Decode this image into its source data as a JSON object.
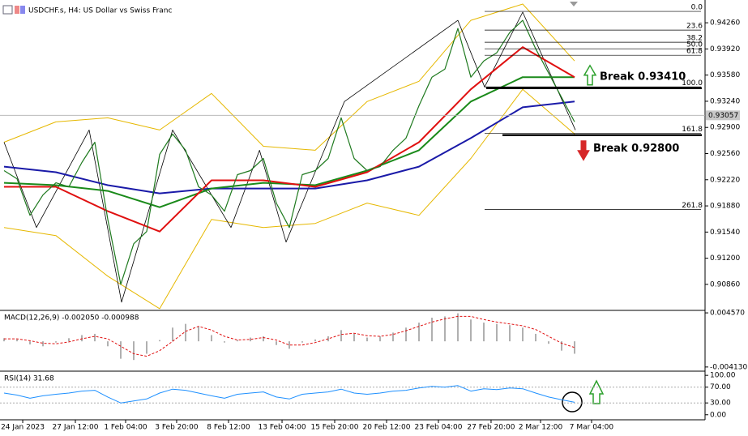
{
  "chart_data": [
    {
      "type": "line",
      "title": "USDCHF.s, H4:  US Dollar vs Swiss Franc",
      "xlim": [
        -0.3125,
        54.0625
      ],
      "ylim": [
        0.90522,
        0.94556
      ],
      "yticks": [
        {
          "value": 0.9426,
          "label": "0.94260"
        },
        {
          "value": 0.9392,
          "label": "0.93920"
        },
        {
          "value": 0.9358,
          "label": "0.93580"
        },
        {
          "value": 0.9324,
          "label": "0.93240"
        },
        {
          "value": 0.929,
          "label": "0.92900"
        },
        {
          "value": 0.9256,
          "label": "0.92560"
        },
        {
          "value": 0.9222,
          "label": "0.92220"
        },
        {
          "value": 0.9188,
          "label": "0.91880"
        },
        {
          "value": 0.9154,
          "label": "0.91540"
        },
        {
          "value": 0.912,
          "label": "0.91200"
        },
        {
          "value": 0.9086,
          "label": "0.90860"
        }
      ],
      "last_price": 0.93057,
      "series": [
        {
          "color": "#e6b800",
          "width": 1,
          "x": [
            0,
            4,
            8,
            12,
            16,
            20,
            24,
            28,
            32,
            36,
            40,
            44
          ],
          "values": [
            0.92708,
            0.92972,
            0.93025,
            0.92867,
            0.93342,
            0.92655,
            0.92603,
            0.93236,
            0.935,
            0.94292,
            0.94503,
            0.93764
          ]
        },
        {
          "color": "#e6b800",
          "width": 1,
          "x": [
            0,
            4,
            8,
            12,
            16,
            20,
            24,
            28,
            32,
            36,
            40,
            44
          ],
          "values": [
            0.916,
            0.91494,
            0.90966,
            0.90544,
            0.91705,
            0.916,
            0.91652,
            0.91916,
            0.91758,
            0.92497,
            0.93395,
            0.92814
          ]
        },
        {
          "color": "#000000",
          "width": 0.8,
          "x": [
            0,
            2.5,
            6.56,
            9.06,
            13,
            17.5,
            19.7,
            21.75,
            26.25,
            35,
            37.06,
            40,
            44.06
          ],
          "values": [
            0.92708,
            0.916,
            0.92867,
            0.90628,
            0.92867,
            0.916,
            0.92603,
            0.9141,
            0.93236,
            0.94292,
            0.93426,
            0.94398,
            0.92867
          ]
        },
        {
          "color": "#1a1aa8",
          "width": 2,
          "x": [
            0,
            4,
            8,
            12,
            16,
            20,
            24,
            28,
            32,
            36,
            40,
            44
          ],
          "values": [
            0.92391,
            0.92318,
            0.92149,
            0.92043,
            0.92106,
            0.92106,
            0.92106,
            0.92212,
            0.92391,
            0.92761,
            0.93162,
            0.93236
          ]
        },
        {
          "color": "#1a8a1a",
          "width": 2,
          "x": [
            0,
            4,
            8,
            12,
            16,
            20,
            24,
            28,
            32,
            36,
            40,
            44
          ],
          "values": [
            0.9218,
            0.92149,
            0.92075,
            0.91863,
            0.92106,
            0.9218,
            0.92149,
            0.92339,
            0.92603,
            0.93236,
            0.93553,
            0.93553
          ]
        },
        {
          "color": "#e01010",
          "width": 2,
          "x": [
            0,
            4,
            8,
            12,
            16,
            20,
            24,
            28,
            32,
            36,
            40,
            44
          ],
          "values": [
            0.92128,
            0.92128,
            0.91811,
            0.91547,
            0.92212,
            0.92212,
            0.92128,
            0.92318,
            0.92708,
            0.93395,
            0.93944,
            0.93553
          ]
        },
        {
          "color": "#1f7a1f",
          "width": 1.2,
          "values": [
            0.92339,
            0.92233,
            0.91758,
            0.92022,
            0.9218,
            0.92128,
            0.92444,
            0.92708,
            0.91705,
            0.9086,
            0.91388,
            0.91547,
            0.9255,
            0.92814,
            0.92603,
            0.92128,
            0.92022,
            0.91811,
            0.92286,
            0.92339,
            0.92497,
            0.91916,
            0.916,
            0.92286,
            0.92339,
            0.92497,
            0.93025,
            0.92497,
            0.92339,
            0.92391,
            0.92603,
            0.92761,
            0.93183,
            0.93553,
            0.93659,
            0.94186,
            0.93553,
            0.93764,
            0.9387,
            0.94134,
            0.94292,
            0.93922,
            0.93606,
            0.93289,
            0.92972
          ]
        }
      ],
      "fib_levels": [
        {
          "label": "0.0",
          "value": 0.94408
        },
        {
          "label": "23.6",
          "value": 0.94165
        },
        {
          "label": "38.2",
          "value": 0.94007
        },
        {
          "label": "50.0",
          "value": 0.93922
        },
        {
          "label": "61.8",
          "value": 0.93838
        },
        {
          "label": "100.0",
          "value": 0.93426
        },
        {
          "label": "161.8",
          "value": 0.92824
        },
        {
          "label": "261.8",
          "value": 0.91832
        }
      ],
      "annotations": [
        {
          "text": "Break 0.93410",
          "value": 0.9341,
          "color": "#2ca02c",
          "direction": "up"
        },
        {
          "text": "Break 0.92800",
          "value": 0.928,
          "color": "#d62728",
          "direction": "down"
        }
      ]
    },
    {
      "type": "bar",
      "title": "MACD(12,26,9) -0.002050 -0.000988",
      "xlim": [
        -0.3125,
        54.0625
      ],
      "ylim": [
        -0.0048,
        0.00497
      ],
      "yticks": [
        {
          "value": 0.00457,
          "label": "0.004570"
        },
        {
          "value": -0.00413,
          "label": "-0.004130"
        }
      ],
      "series": [
        {
          "kind": "bar",
          "color": "#b0b0b0",
          "values": [
            0.0005,
            0.0003,
            -0.0005,
            -0.0008,
            -0.0002,
            0.0005,
            0.001,
            0.0012,
            -0.0008,
            -0.0028,
            -0.003,
            -0.002,
            0.0002,
            0.0022,
            0.0028,
            0.0024,
            0.001,
            -0.0002,
            0.0002,
            0.0006,
            0.0008,
            -0.0006,
            -0.0012,
            -0.0002,
            0.0003,
            0.0008,
            0.0018,
            0.0012,
            0.0006,
            0.0008,
            0.0014,
            0.0022,
            0.003,
            0.0038,
            0.004,
            0.0045,
            0.0035,
            0.003,
            0.0028,
            0.0026,
            0.0022,
            0.0012,
            -0.0004,
            -0.0015,
            -0.002
          ]
        },
        {
          "kind": "line",
          "color": "#e01010",
          "dash": true,
          "values": [
            0.0004,
            0.0004,
            0.0001,
            -0.0003,
            -0.0004,
            -0.0001,
            0.0004,
            0.0008,
            0.0004,
            -0.0008,
            -0.002,
            -0.0024,
            -0.0015,
            0,
            0.0016,
            0.0024,
            0.0018,
            0.0008,
            0.0002,
            0.0003,
            0.0006,
            0.0002,
            -0.0006,
            -0.0006,
            -0.0002,
            0.0004,
            0.0011,
            0.0013,
            0.0009,
            0.0008,
            0.0011,
            0.0017,
            0.0024,
            0.0031,
            0.0036,
            0.004,
            0.004,
            0.0035,
            0.0031,
            0.0028,
            0.0025,
            0.0019,
            0.0008,
            -0.0003,
            -0.001
          ]
        }
      ]
    },
    {
      "type": "line",
      "title": "RSI(14) 31.68",
      "xlim": [
        -0.3125,
        54.0625
      ],
      "ylim": [
        -12.8,
        110.6
      ],
      "yticks": [
        {
          "value": 100,
          "label": "100.00"
        },
        {
          "value": 70,
          "label": "70.00"
        },
        {
          "value": 30,
          "label": "30.00"
        },
        {
          "value": 0,
          "label": "0.00"
        }
      ],
      "reference_lines": [
        70,
        30
      ],
      "xticks": [
        {
          "value": 1.44,
          "label": "24 Jan 2023"
        },
        {
          "value": 5.5,
          "label": "27 Jan 12:00"
        },
        {
          "value": 9.375,
          "label": "1 Feb 04:00"
        },
        {
          "value": 13.31,
          "label": "3 Feb 20:00"
        },
        {
          "value": 17.31,
          "label": "8 Feb 12:00"
        },
        {
          "value": 21.44,
          "label": "13 Feb 04:00"
        },
        {
          "value": 25.5,
          "label": "15 Feb 20:00"
        },
        {
          "value": 29.5,
          "label": "20 Feb 12:00"
        },
        {
          "value": 33.5,
          "label": "23 Feb 04:00"
        },
        {
          "value": 37.56,
          "label": "27 Feb 20:00"
        },
        {
          "value": 41.375,
          "label": "2 Mar 12:00"
        },
        {
          "value": 45.31,
          "label": "7 Mar 04:00"
        }
      ],
      "series": [
        {
          "kind": "line",
          "color": "#1e90ff",
          "values": [
            55,
            50,
            42,
            48,
            52,
            55,
            60,
            62,
            45,
            30,
            35,
            40,
            55,
            65,
            62,
            55,
            48,
            42,
            52,
            55,
            58,
            45,
            40,
            52,
            55,
            58,
            65,
            55,
            52,
            55,
            60,
            62,
            68,
            72,
            70,
            74,
            60,
            66,
            64,
            68,
            66,
            55,
            45,
            38,
            31.68
          ]
        }
      ]
    }
  ]
}
